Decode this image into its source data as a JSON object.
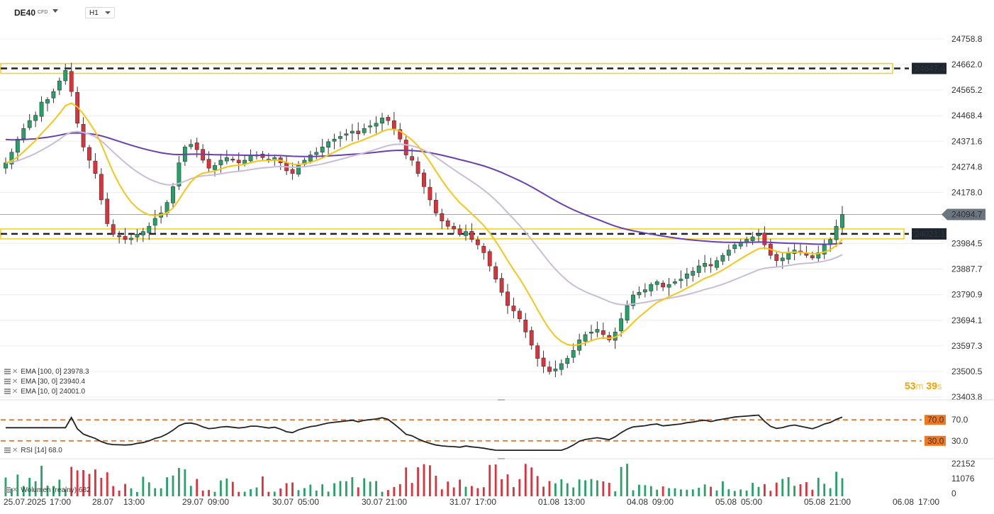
{
  "header": {
    "symbol": "DE40",
    "instrument_type": "CFD",
    "timeframe": "H1"
  },
  "price_axis": [
    "24758.8",
    "24662.0",
    "24565.2",
    "24468.4",
    "24371.6",
    "24274.8",
    "24178.0",
    "24094.7",
    "23984.5",
    "23887.7",
    "23790.9",
    "23694.1",
    "23597.3",
    "23500.5",
    "23403.8"
  ],
  "price_tags": {
    "current": "24094.7",
    "resistance": "24647.4",
    "support": "24021.1"
  },
  "indicators": {
    "ema100": "EMA [100,  0]  23978.3",
    "ema30": "EMA [30,  0]  23940.4",
    "ema10": "EMA [10,  0]  24001.0",
    "rsi": "RSI [14]  68.0",
    "volume": "Wolumen  (realny)  682"
  },
  "rsi_axis": {
    "upper": "70.0",
    "lower": "30.0",
    "upper_tag": "70.0",
    "lower_tag": "30.0"
  },
  "volume_axis": [
    "22152",
    "11076",
    "0"
  ],
  "time_axis": [
    "25.07.2025",
    "17:00",
    "28.07",
    "13:00",
    "29.07",
    "09:00",
    "30.07",
    "05:00",
    "30.07",
    "21:00",
    "31.07",
    "17:00",
    "01.08",
    "13:00",
    "04.08",
    "09:00",
    "05.08",
    "05:00",
    "05.08",
    "21:00",
    "06.08",
    "17:00"
  ],
  "countdown": {
    "minutes": "53",
    "m_unit": "m",
    "seconds": "39",
    "s_unit": "s"
  },
  "colors": {
    "bull": "#26a269",
    "bear": "#e0303a",
    "ema10": "#f5c518",
    "ema30": "#c8bcd9",
    "ema100": "#6a3fb0",
    "zone": "#f0d020",
    "level": "#f07820",
    "rsi": "#222222"
  },
  "chart_data": {
    "type": "candlestick",
    "title": "DE40 H1",
    "ylim": [
      23403.8,
      24758.8
    ],
    "resistance_level": 24647.4,
    "support_level": 24021.1,
    "current_price": 24094.7,
    "ema_values": {
      "ema100": 23978.3,
      "ema30": 23940.4,
      "ema10": 24001.0
    },
    "rsi_value": 68.0,
    "volume_value": 682,
    "close_path": [
      24290,
      24330,
      24380,
      24420,
      24450,
      24470,
      24520,
      24530,
      24560,
      24600,
      24640,
      24560,
      24440,
      24350,
      24300,
      24250,
      24150,
      24060,
      24020,
      24010,
      24000,
      24005,
      24020,
      24030,
      24050,
      24080,
      24100,
      24140,
      24200,
      24290,
      24350,
      24360,
      24340,
      24300,
      24270,
      24280,
      24300,
      24310,
      24300,
      24290,
      24300,
      24320,
      24320,
      24310,
      24300,
      24310,
      24290,
      24260,
      24250,
      24280,
      24300,
      24320,
      24330,
      24350,
      24370,
      24380,
      24390,
      24400,
      24410,
      24400,
      24420,
      24430,
      24440,
      24460,
      24450,
      24420,
      24380,
      24320,
      24300,
      24250,
      24200,
      24150,
      24100,
      24070,
      24050,
      24040,
      24020,
      24030,
      24000,
      23980,
      23950,
      23900,
      23850,
      23800,
      23750,
      23730,
      23700,
      23650,
      23600,
      23550,
      23520,
      23500,
      23510,
      23530,
      23550,
      23580,
      23620,
      23640,
      23650,
      23660,
      23640,
      23620,
      23650,
      23700,
      23750,
      23790,
      23800,
      23810,
      23830,
      23840,
      23820,
      23830,
      23840,
      23850,
      23870,
      23880,
      23900,
      23910,
      23900,
      23920,
      23940,
      23960,
      23980,
      23990,
      24000,
      24010,
      24020,
      23980,
      23940,
      23920,
      23930,
      23950,
      23960,
      23950,
      23940,
      23930,
      23950,
      23980,
      24000,
      24050,
      24094.7
    ]
  }
}
